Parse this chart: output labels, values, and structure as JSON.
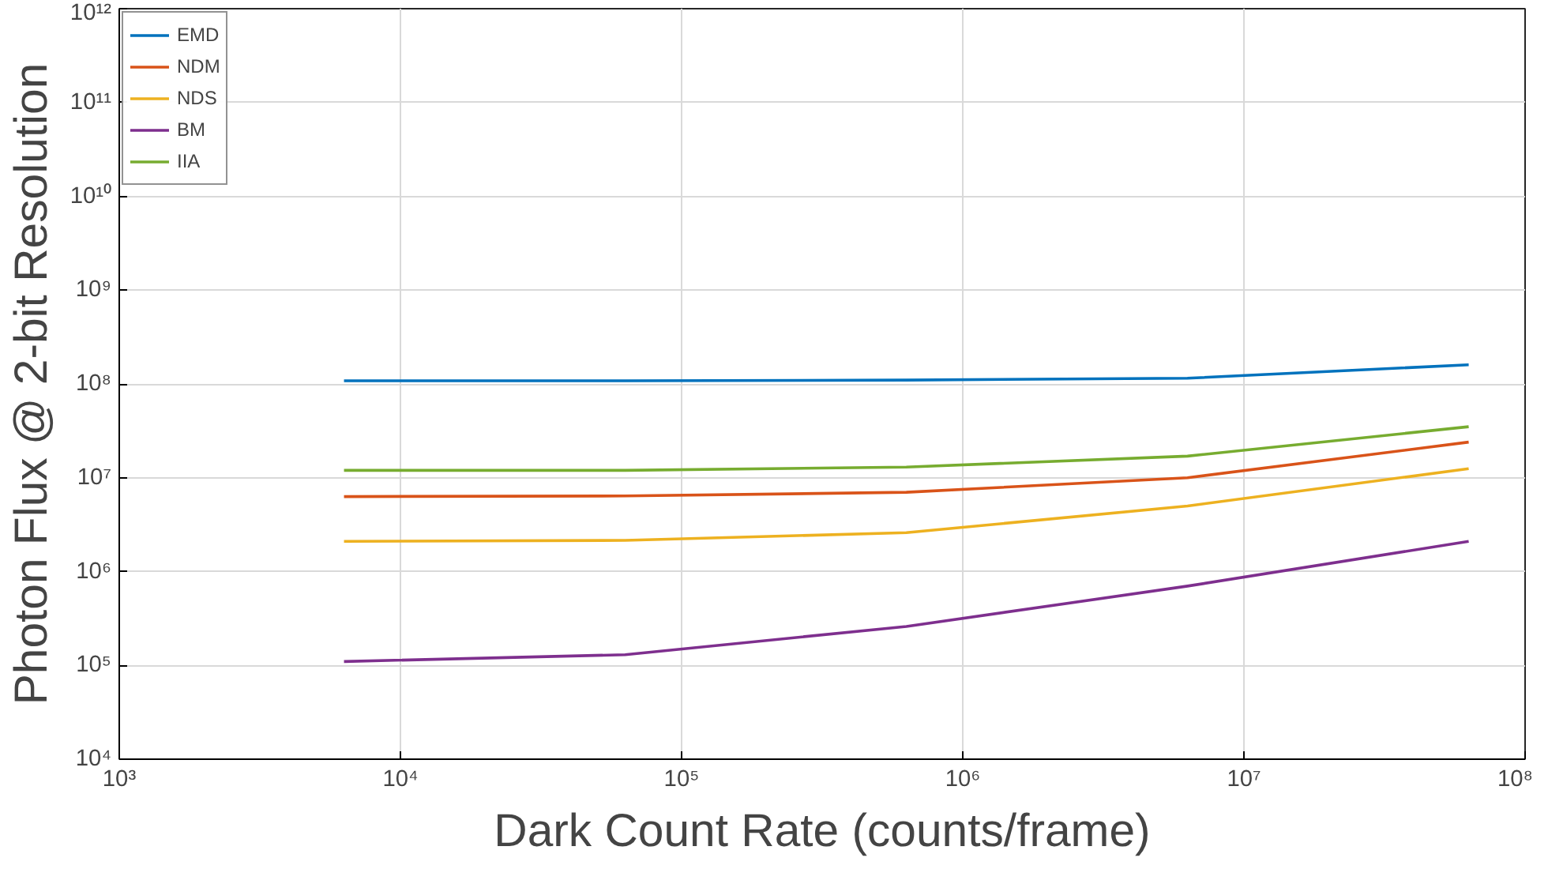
{
  "chart_data": {
    "type": "line",
    "xlabel": "Dark Count Rate (counts/frame)",
    "ylabel": "Photon Flux @ 2-bit Resolution",
    "log": "xy",
    "grid": true,
    "legend": "top left",
    "line_style": "solid",
    "marker": "none",
    "x": [
      6300,
      63000,
      630000,
      6300000,
      63000000
    ],
    "xlim": [
      1000,
      100000000
    ],
    "xticks": [
      {
        "value": 1000,
        "label": "10³"
      },
      {
        "value": 10000,
        "label": "10⁴"
      },
      {
        "value": 100000,
        "label": "10⁵"
      },
      {
        "value": 1000000,
        "label": "10⁶"
      },
      {
        "value": 10000000,
        "label": "10⁷"
      },
      {
        "value": 100000000,
        "label": "10⁸"
      }
    ],
    "ylim": [
      10000,
      1000000000000
    ],
    "yticks": [
      {
        "value": 10000,
        "label": "10⁴"
      },
      {
        "value": 100000,
        "label": "10⁵"
      },
      {
        "value": 1000000,
        "label": "10⁶"
      },
      {
        "value": 10000000,
        "label": "10⁷"
      },
      {
        "value": 100000000,
        "label": "10⁸"
      },
      {
        "value": 1000000000,
        "label": "10⁹"
      },
      {
        "value": 10000000000,
        "label": "10¹⁰"
      },
      {
        "value": 100000000000,
        "label": "10¹¹"
      },
      {
        "value": 1000000000000,
        "label": "10¹²"
      }
    ],
    "series": [
      {
        "name": "EMD",
        "color": "#0072bd",
        "values": [
          108000000,
          108000000,
          110000000,
          115000000,
          160000000
        ]
      },
      {
        "name": "NDM",
        "color": "#d95319",
        "values": [
          6300000,
          6400000,
          7000000,
          10000000,
          24000000
        ]
      },
      {
        "name": "NDS",
        "color": "#edb120",
        "values": [
          2100000,
          2150000,
          2600000,
          5000000,
          12500000
        ]
      },
      {
        "name": "BM",
        "color": "#7e2f8e",
        "values": [
          110000,
          130000,
          260000,
          700000,
          2100000
        ]
      },
      {
        "name": "IIA",
        "color": "#77ac30",
        "values": [
          12000000,
          12000000,
          13000000,
          17000000,
          35000000
        ]
      }
    ]
  }
}
